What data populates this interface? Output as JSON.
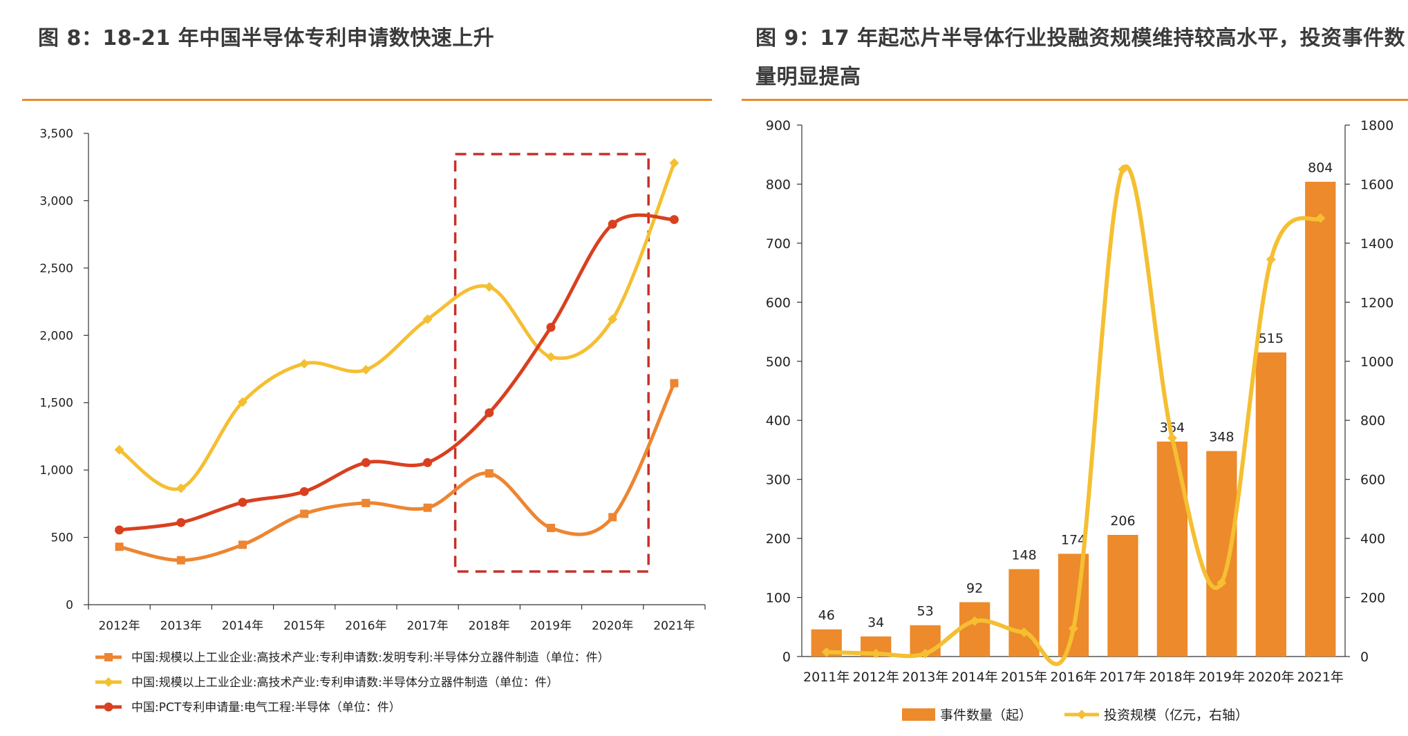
{
  "figures": [
    {
      "title": "图 8：18-21 年中国半导体专利申请数快速上升",
      "chart_data": {
        "type": "line",
        "categories": [
          "2012年",
          "2013年",
          "2014年",
          "2015年",
          "2016年",
          "2017年",
          "2018年",
          "2019年",
          "2020年",
          "2021年"
        ],
        "ylim": [
          0,
          3500
        ],
        "yticks": [
          0,
          500,
          1000,
          1500,
          2000,
          2500,
          3000,
          3500
        ],
        "ytick_labels": [
          "0",
          "500",
          "1,000",
          "1,500",
          "2,000",
          "2,500",
          "3,000",
          "3,500"
        ],
        "grid": false,
        "legend_position": "bottom",
        "highlight": {
          "from": "2017年",
          "to": "2020年",
          "style": "dashed box"
        },
        "series": [
          {
            "name": "中国:规模以上工业企业:高技术产业:专利申请数:发明专利:半导体分立器件制造（单位：件）",
            "color": "#ed8531",
            "marker": "square",
            "values": [
              430,
              330,
              445,
              675,
              755,
              720,
              975,
              570,
              650,
              1645
            ]
          },
          {
            "name": "中国:规模以上工业企业:高技术产业:专利申请数:半导体分立器件制造（单位：件）",
            "color": "#f5bf32",
            "marker": "diamond",
            "values": [
              1150,
              865,
              1505,
              1790,
              1745,
              2120,
              2360,
              1840,
              2120,
              3280
            ]
          },
          {
            "name": "中国:PCT专利申请量:电气工程:半导体（单位：件）",
            "color": "#d9401f",
            "marker": "circle",
            "values": [
              555,
              610,
              760,
              840,
              1055,
              1055,
              1425,
              2060,
              2825,
              2860
            ]
          }
        ]
      }
    },
    {
      "title": "图 9：17 年起芯片半导体行业投融资规模维持较高水平，投资事件数量明显提高",
      "chart_data": {
        "type": "bar",
        "categories": [
          "2011年",
          "2012年",
          "2013年",
          "2014年",
          "2015年",
          "2016年",
          "2017年",
          "2018年",
          "2019年",
          "2020年",
          "2021年"
        ],
        "ylim": [
          0,
          900
        ],
        "yticks": [
          0,
          100,
          200,
          300,
          400,
          500,
          600,
          700,
          800,
          900
        ],
        "y2lim": [
          0,
          1800
        ],
        "y2ticks": [
          0,
          200,
          400,
          600,
          800,
          1000,
          1200,
          1400,
          1600,
          1800
        ],
        "grid": false,
        "legend_position": "bottom",
        "series": [
          {
            "name": "事件数量（起）",
            "type": "bar",
            "axis": "left",
            "color": "#ed8a2b",
            "values": [
              46,
              34,
              53,
              92,
              148,
              174,
              206,
              364,
              348,
              515,
              804
            ]
          },
          {
            "name": "投资规模（亿元，右轴）",
            "type": "line",
            "axis": "right",
            "color": "#f5bf32",
            "values": [
              15,
              10,
              10,
              120,
              82,
              95,
              1650,
              740,
              250,
              1345,
              1485
            ]
          }
        ]
      }
    }
  ]
}
